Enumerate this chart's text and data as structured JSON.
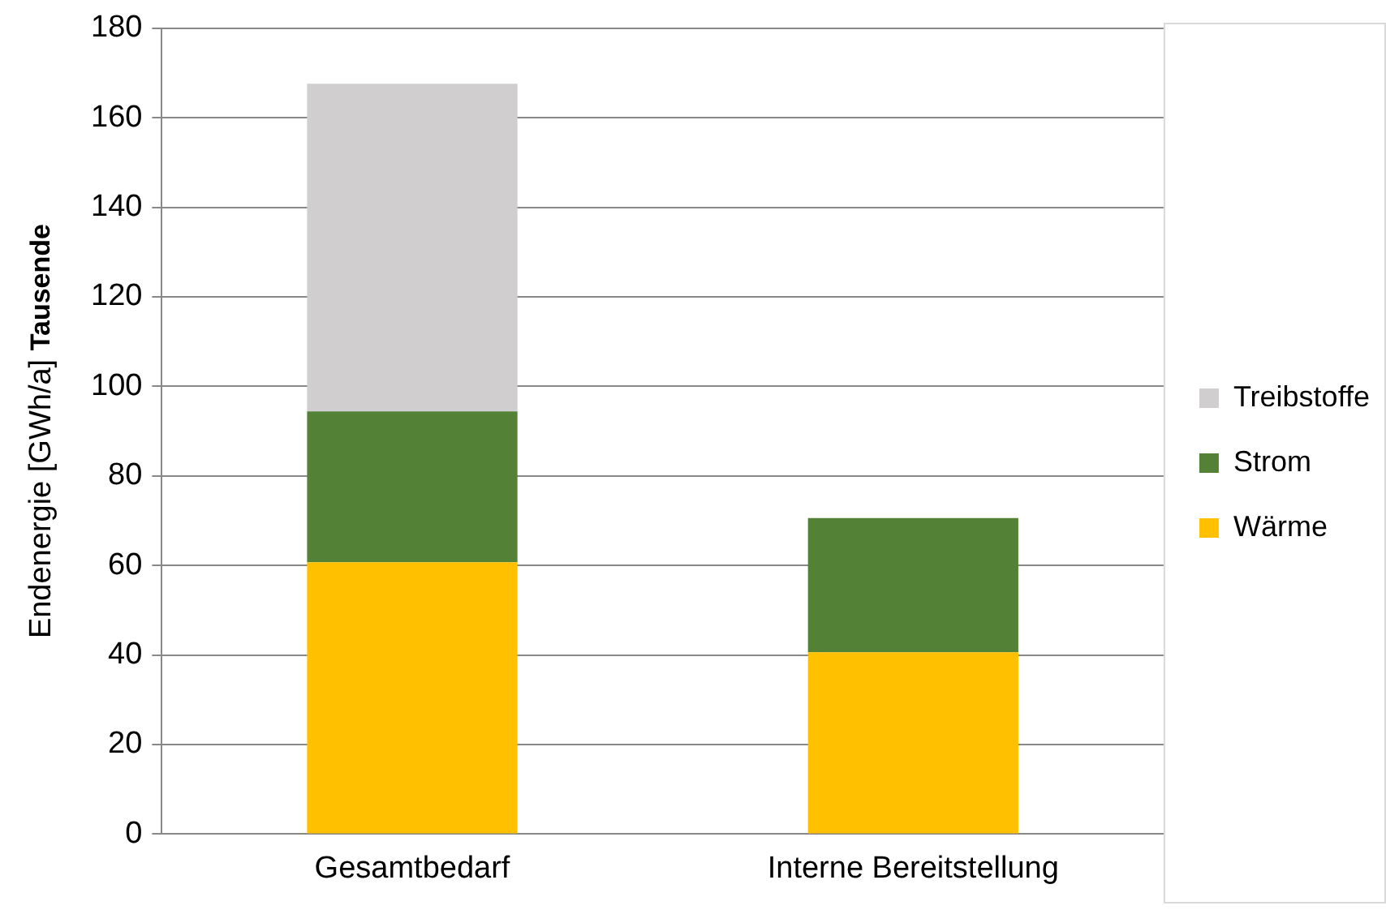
{
  "chart_data": {
    "type": "bar",
    "stacked": true,
    "ylabel": "Endenergie [GWh/a]",
    "annotations": [
      "Tausende"
    ],
    "categories": [
      "Gesamtbedarf",
      "Interne Bereitstellung"
    ],
    "series": [
      {
        "name": "Wärme",
        "color": "#ffc000",
        "values": [
          60.7,
          40.6
        ]
      },
      {
        "name": "Strom",
        "color": "#538135",
        "values": [
          33.7,
          30.0
        ]
      },
      {
        "name": "Treibstoffe",
        "color": "#d0cece",
        "values": [
          73.2,
          null
        ]
      }
    ],
    "ylim": [
      0,
      180
    ],
    "yticks": [
      0,
      20,
      40,
      60,
      80,
      100,
      120,
      140,
      160,
      180
    ],
    "grid": "y",
    "legend": "right"
  }
}
